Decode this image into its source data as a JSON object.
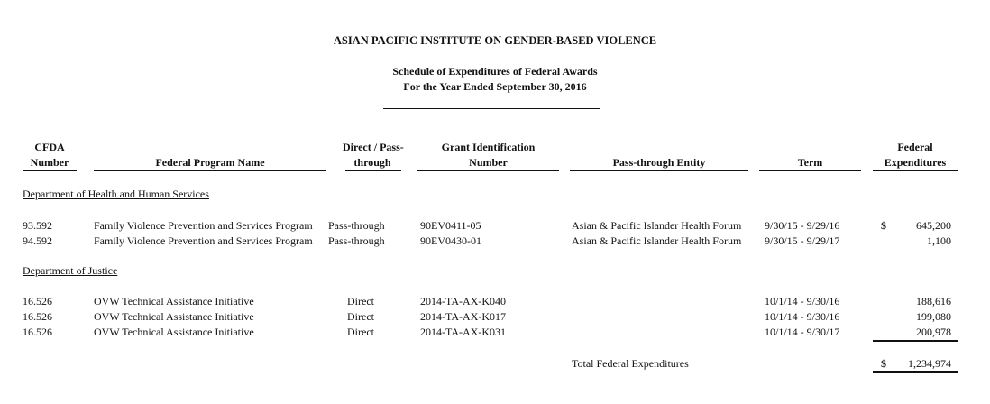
{
  "title": "ASIAN PACIFIC INSTITUTE ON GENDER-BASED VIOLENCE",
  "subtitle": "Schedule of Expenditures of Federal Awards",
  "period": "For the Year Ended September 30, 2016",
  "columns": {
    "cfda": [
      "CFDA",
      "Number"
    ],
    "program": "Federal Program Name",
    "direct": [
      "Direct / Pass-",
      "through"
    ],
    "grant": [
      "Grant Identification",
      "Number"
    ],
    "entity": "Pass-through Entity",
    "term": "Term",
    "expenditures": [
      "Federal",
      "Expenditures"
    ]
  },
  "sections": [
    {
      "name": "Department of Health and Human Services",
      "rows": [
        {
          "cfda": "93.592",
          "program": "Family Violence Prevention and Services Program",
          "direct": "Pass-through",
          "grant": "90EV0411-05",
          "entity": "Asian & Pacific Islander Health Forum",
          "term": "9/30/15 - 9/29/16",
          "currency": "$",
          "amount": "645,200"
        },
        {
          "cfda": "94.592",
          "program": "Family Violence Prevention and Services Program",
          "direct": "Pass-through",
          "grant": "90EV0430-01",
          "entity": "Asian & Pacific Islander Health Forum",
          "term": "9/30/15 - 9/29/17",
          "currency": "",
          "amount": "1,100"
        }
      ]
    },
    {
      "name": "Department of Justice",
      "rows": [
        {
          "cfda": "16.526",
          "program": "OVW Technical Assistance Initiative",
          "direct": "Direct",
          "grant": "2014-TA-AX-K040",
          "entity": "",
          "term": "10/1/14 - 9/30/16",
          "currency": "",
          "amount": "188,616"
        },
        {
          "cfda": "16.526",
          "program": "OVW Technical Assistance Initiative",
          "direct": "Direct",
          "grant": "2014-TA-AX-K017",
          "entity": "",
          "term": "10/1/14 - 9/30/16",
          "currency": "",
          "amount": "199,080"
        },
        {
          "cfda": "16.526",
          "program": "OVW Technical Assistance Initiative",
          "direct": "Direct",
          "grant": "2014-TA-AX-K031",
          "entity": "",
          "term": "10/1/14 - 9/30/17",
          "currency": "",
          "amount": "200,978"
        }
      ]
    }
  ],
  "total": {
    "label": "Total Federal Expenditures",
    "currency": "$",
    "amount": "1,234,974"
  }
}
